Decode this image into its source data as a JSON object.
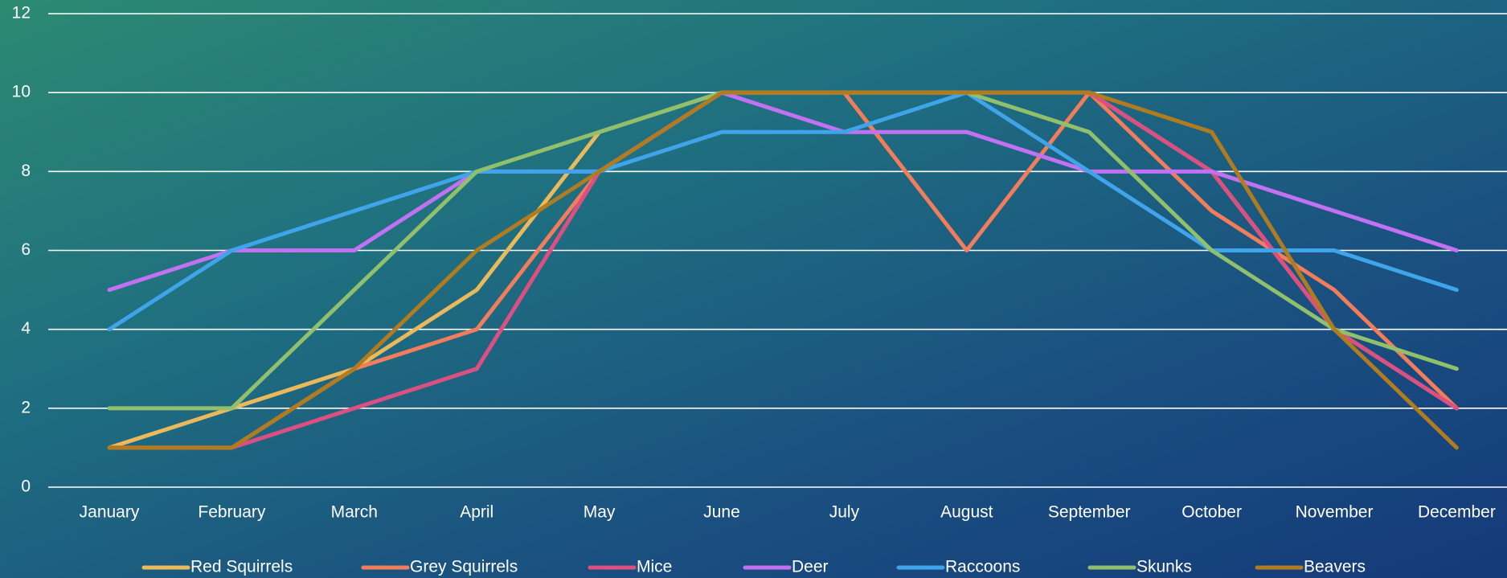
{
  "chart_data": {
    "type": "line",
    "categories": [
      "January",
      "February",
      "March",
      "April",
      "May",
      "June",
      "July",
      "August",
      "September",
      "October",
      "November",
      "December"
    ],
    "series": [
      {
        "name": "Red Squirrels",
        "color": "#e9b95c",
        "values": [
          1,
          2,
          3,
          5,
          9,
          10,
          10,
          10,
          10,
          8,
          4,
          2
        ]
      },
      {
        "name": "Grey Squirrels",
        "color": "#f27d5b",
        "values": [
          1,
          1,
          3,
          4,
          8,
          10,
          10,
          6,
          10,
          7,
          5,
          2
        ]
      },
      {
        "name": "Mice",
        "color": "#dc4f80",
        "values": [
          1,
          1,
          2,
          3,
          8,
          10,
          10,
          10,
          10,
          8,
          4,
          2
        ]
      },
      {
        "name": "Deer",
        "color": "#c271f2",
        "values": [
          5,
          6,
          6,
          8,
          8,
          10,
          9,
          9,
          8,
          8,
          7,
          6
        ]
      },
      {
        "name": "Raccoons",
        "color": "#3fa4ea",
        "values": [
          4,
          6,
          7,
          8,
          8,
          9,
          9,
          10,
          8,
          6,
          6,
          5
        ]
      },
      {
        "name": "Skunks",
        "color": "#90c06c",
        "values": [
          2,
          2,
          5,
          8,
          9,
          10,
          10,
          10,
          9,
          6,
          4,
          3
        ]
      },
      {
        "name": "Beavers",
        "color": "#b17b1f",
        "values": [
          1,
          1,
          3,
          6,
          8,
          10,
          10,
          10,
          10,
          9,
          4,
          1
        ]
      }
    ],
    "ylim": [
      0,
      12
    ],
    "yticks": [
      0,
      2,
      4,
      6,
      8,
      10,
      12
    ],
    "grid": true,
    "legend": "bottom"
  }
}
